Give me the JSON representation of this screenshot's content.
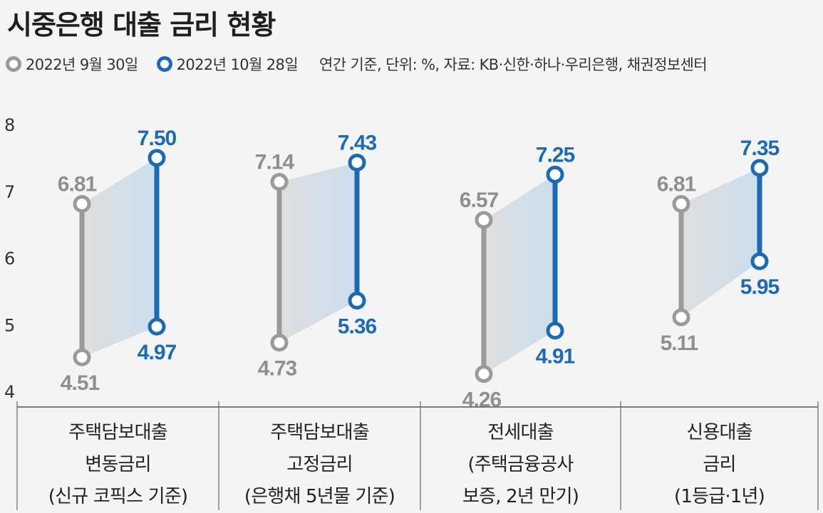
{
  "title": "시중은행 대출 금리 현황",
  "legend": {
    "series1": "2022년 9월 30일",
    "series2": "2022년 10월 28일",
    "note": "연간 기준, 단위: %, 자료: KB·신한·하나·우리은행, 채권정보센터"
  },
  "colors": {
    "gray": "#9a9a9a",
    "blue": "#1d6ab3"
  },
  "chart_data": {
    "type": "range-dumbbell",
    "unit": "%",
    "ylim": [
      4,
      8
    ],
    "yticks": [
      "8",
      "7",
      "6",
      "5",
      "4"
    ],
    "categories": [
      [
        "주택담보대출",
        "변동금리",
        "(신규 코픽스 기준)"
      ],
      [
        "주택담보대출",
        "고정금리",
        "(은행채 5년물 기준)"
      ],
      [
        "전세대출",
        "(주택금융공사",
        "보증, 2년 만기)"
      ],
      [
        "신용대출",
        "금리",
        "(1등급·1년)"
      ]
    ],
    "series": [
      {
        "name": "2022년 9월 30일",
        "min": [
          4.51,
          4.73,
          4.26,
          5.11
        ],
        "max": [
          6.81,
          7.14,
          6.57,
          6.81
        ],
        "min_labels": [
          "4.51",
          "4.73",
          "4.26",
          "5.11"
        ],
        "max_labels": [
          "6.81",
          "7.14",
          "6.57",
          "6.81"
        ]
      },
      {
        "name": "2022년 10월 28일",
        "min": [
          4.97,
          5.36,
          4.91,
          5.95
        ],
        "max": [
          7.5,
          7.43,
          7.25,
          7.35
        ],
        "min_labels": [
          "4.97",
          "5.36",
          "4.91",
          "5.95"
        ],
        "max_labels": [
          "7.50",
          "7.43",
          "7.25",
          "7.35"
        ]
      }
    ]
  }
}
